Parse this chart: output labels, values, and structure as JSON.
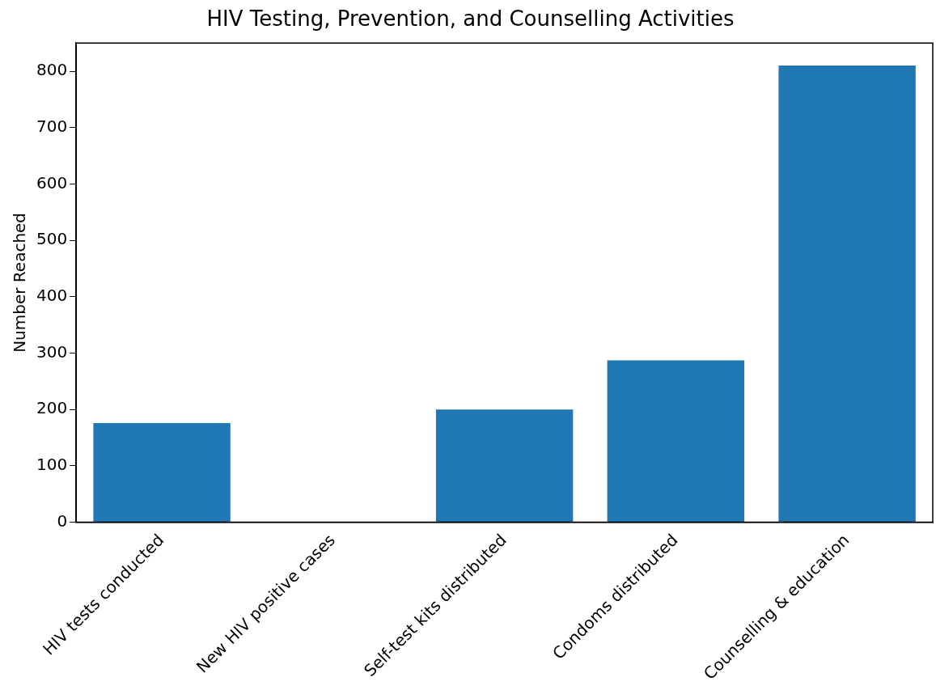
{
  "chart_data": {
    "type": "bar",
    "title": "HIV Testing, Prevention, and Counselling Activities",
    "ylabel": "Number Reached",
    "categories": [
      "HIV tests conducted",
      "New HIV positive cases",
      "Self-test kits distributed",
      "Condoms distributed",
      "Counselling & education"
    ],
    "values": [
      176,
      0,
      200,
      287,
      810
    ],
    "color": "#1f77b4",
    "ylim": [
      0,
      850
    ],
    "yticks": [
      0,
      100,
      200,
      300,
      400,
      500,
      600,
      700,
      800
    ],
    "grid": false,
    "legend": false
  }
}
